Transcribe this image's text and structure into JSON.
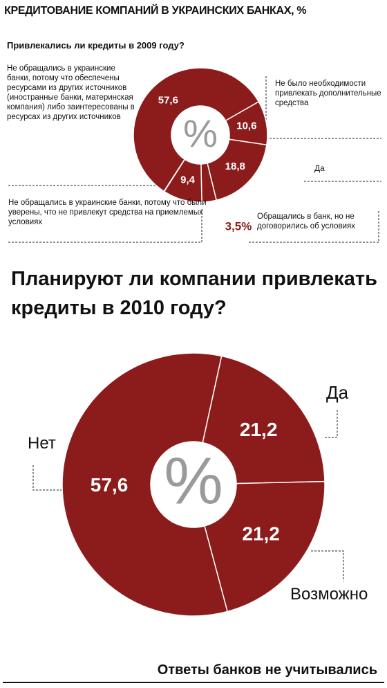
{
  "title": "КРЕДИТОВАНИЕ КОМПАНИЙ В УКРАИНСКИХ БАНКАХ, %",
  "footnote": "Ответы банков не учитывались",
  "chart_data": [
    {
      "type": "pie",
      "title": "Привлекались ли кредиты в 2009 году?",
      "center_label": "%",
      "color": "#8c1c1c",
      "categories": [
        "Не обращались в украинские банки, потому что обеспечены ресурсами из других источников (иностранные банки, материнская компания) либо заинтересованы в ресурсах из других источников",
        "Не было необходимости привлекать дополнительные средства",
        "Да",
        "Обращались в банк, но не договорились об условиях",
        "Не обращались в украинские банки, потому что были уверены, что не привлекут средства на приемлемых условиях"
      ],
      "values": [
        57.6,
        10.6,
        18.8,
        3.5,
        9.4
      ],
      "value_labels": [
        "57,6",
        "10,6",
        "18,8",
        "3,5%",
        "9,4"
      ]
    },
    {
      "type": "pie",
      "title": "Планируют ли компании привлекать кредиты в 2010 году?",
      "center_label": "%",
      "color": "#8c1c1c",
      "categories": [
        "Нет",
        "Да",
        "Возможно"
      ],
      "values": [
        57.6,
        21.2,
        21.2
      ],
      "value_labels": [
        "57,6",
        "21,2",
        "21,2"
      ]
    }
  ]
}
